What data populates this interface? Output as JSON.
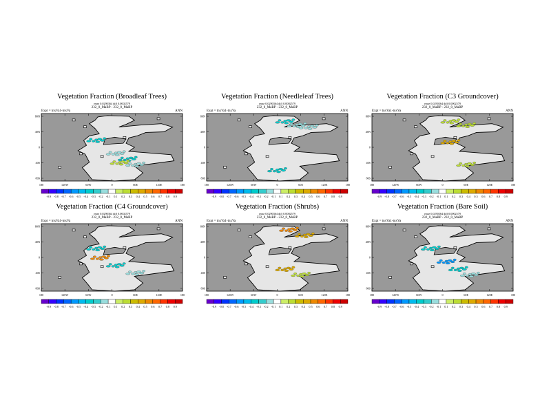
{
  "chart_data": [
    {
      "type": "heatmap",
      "title": "Vegetation Fraction (Broadleaf Trees)",
      "left_label": "Expt = tnxVa1-tnxVa",
      "right_label": "ANN",
      "stats_line1": "rmse 0.0290364 diff 0.0002579",
      "stats_line2": "232_0_MaBP - 232_0_MaBP",
      "lat_ticks": [
        "80N",
        "40N",
        "0",
        "40S",
        "80S"
      ],
      "lon_ticks": [
        "180",
        "120W",
        "60W",
        "0",
        "60E",
        "120E",
        "180"
      ],
      "colorbar_levels": [
        "-0.9",
        "-0.8",
        "-0.7",
        "-0.6",
        "-0.5",
        "-0.4",
        "-0.3",
        "-0.2",
        "-0.1",
        "0.1",
        "0.2",
        "0.3",
        "0.4",
        "0.5",
        "0.6",
        "0.7",
        "0.8",
        "0.9"
      ],
      "anomaly_patches": [
        {
          "lon": -40,
          "lat": 20,
          "value": -0.3
        },
        {
          "lon": 10,
          "lat": -15,
          "value": -0.2
        },
        {
          "lon": 40,
          "lat": -30,
          "value": -0.3
        },
        {
          "lon": 20,
          "lat": -40,
          "value": 0.2
        },
        {
          "lon": 60,
          "lat": -45,
          "value": -0.2
        }
      ]
    },
    {
      "type": "heatmap",
      "title": "Vegetation Fraction (Needleleaf Trees)",
      "left_label": "Expt = tnxVa1-tnxVa",
      "right_label": "ANN",
      "stats_line1": "rmse 0.0290364 diff 0.0002579",
      "stats_line2": "232_0_MaBP - 232_0_MaBP",
      "lat_ticks": [
        "80N",
        "40N",
        "0",
        "40S",
        "80S"
      ],
      "lon_ticks": [
        "180",
        "120W",
        "60W",
        "0",
        "60E",
        "120E",
        "180"
      ],
      "colorbar_levels": [
        "-0.9",
        "-0.8",
        "-0.7",
        "-0.6",
        "-0.5",
        "-0.4",
        "-0.3",
        "-0.2",
        "-0.1",
        "0.1",
        "0.2",
        "0.3",
        "0.4",
        "0.5",
        "0.6",
        "0.7",
        "0.8",
        "0.9"
      ],
      "anomaly_patches": [
        {
          "lon": 20,
          "lat": 70,
          "value": -0.3
        },
        {
          "lon": 50,
          "lat": 60,
          "value": -0.2
        },
        {
          "lon": 80,
          "lat": 55,
          "value": -0.2
        },
        {
          "lon": 0,
          "lat": -60,
          "value": -0.3
        }
      ]
    },
    {
      "type": "heatmap",
      "title": "Vegetation Fraction (C3 Groundcover)",
      "left_label": "Expt = tnxVa1-tnxVa",
      "right_label": "ANN",
      "stats_line1": "rmse 0.0290364 diff 0.0002579",
      "stats_line2": "232_0_MaBP - 232_0_MaBP",
      "lat_ticks": [
        "80N",
        "40N",
        "0",
        "40S",
        "80S"
      ],
      "lon_ticks": [
        "180",
        "120W",
        "60W",
        "0",
        "60E",
        "120E",
        "180"
      ],
      "colorbar_levels": [
        "-0.9",
        "-0.8",
        "-0.7",
        "-0.6",
        "-0.5",
        "-0.4",
        "-0.3",
        "-0.2",
        "-0.1",
        "0.1",
        "0.2",
        "0.3",
        "0.4",
        "0.5",
        "0.6",
        "0.7",
        "0.8",
        "0.9"
      ],
      "anomaly_patches": [
        {
          "lon": 20,
          "lat": 70,
          "value": 0.2
        },
        {
          "lon": 60,
          "lat": 60,
          "value": 0.2
        },
        {
          "lon": 20,
          "lat": 15,
          "value": 0.3
        },
        {
          "lon": 60,
          "lat": -45,
          "value": 0.2
        }
      ]
    },
    {
      "type": "heatmap",
      "title": "Vegetation Fraction (C4 Groundcover)",
      "left_label": "Expt = tnxVa1-tnxVa",
      "right_label": "ANN",
      "stats_line1": "rmse 0.0290364 diff 0.0002579",
      "stats_line2": "232_0_MaBP - 232_0_MaBP",
      "lat_ticks": [
        "80N",
        "40N",
        "0",
        "40S",
        "80S"
      ],
      "lon_ticks": [
        "180",
        "120W",
        "60W",
        "0",
        "60E",
        "120E",
        "180"
      ],
      "colorbar_levels": [
        "-0.9",
        "-0.8",
        "-0.7",
        "-0.6",
        "-0.5",
        "-0.4",
        "-0.3",
        "-0.2",
        "-0.1",
        "0.1",
        "0.2",
        "0.3",
        "0.4",
        "0.5",
        "0.6",
        "0.7",
        "0.8",
        "0.9"
      ],
      "anomaly_patches": [
        {
          "lon": -40,
          "lat": 25,
          "value": -0.3
        },
        {
          "lon": -30,
          "lat": 0,
          "value": 0.5
        },
        {
          "lon": 10,
          "lat": -20,
          "value": -0.3
        },
        {
          "lon": 60,
          "lat": -40,
          "value": -0.2
        }
      ]
    },
    {
      "type": "heatmap",
      "title": "Vegetation Fraction (Shrubs)",
      "left_label": "Expt = tnxVa1-tnxVa",
      "right_label": "ANN",
      "stats_line1": "rmse 0.0290364 diff 0.0002579",
      "stats_line2": "232_0_MaBP - 232_0_MaBP",
      "lat_ticks": [
        "80N",
        "40N",
        "0",
        "40S",
        "80S"
      ],
      "lon_ticks": [
        "180",
        "120W",
        "60W",
        "0",
        "60E",
        "120E",
        "180"
      ],
      "colorbar_levels": [
        "-0.9",
        "-0.8",
        "-0.7",
        "-0.6",
        "-0.5",
        "-0.4",
        "-0.3",
        "-0.2",
        "-0.1",
        "0.1",
        "0.2",
        "0.3",
        "0.4",
        "0.5",
        "0.6",
        "0.7",
        "0.8",
        "0.9"
      ],
      "anomaly_patches": [
        {
          "lon": 30,
          "lat": 75,
          "value": 0.4
        },
        {
          "lon": 70,
          "lat": 60,
          "value": 0.3
        },
        {
          "lon": 20,
          "lat": -30,
          "value": 0.3
        },
        {
          "lon": 60,
          "lat": -45,
          "value": 0.2
        }
      ]
    },
    {
      "type": "heatmap",
      "title": "Vegetation Fraction (Bare Soil)",
      "left_label": "Expt = tnxVa1-tnxVa",
      "right_label": "ANN",
      "stats_line1": "rmse 0.0290364 diff 0.0002579",
      "stats_line2": "232_0_MaBP - 232_0_MaBP",
      "lat_ticks": [
        "80N",
        "40N",
        "0",
        "40S",
        "80S"
      ],
      "lon_ticks": [
        "180",
        "120W",
        "60W",
        "0",
        "60E",
        "120E",
        "180"
      ],
      "colorbar_levels": [
        "-0.9",
        "-0.8",
        "-0.7",
        "-0.6",
        "-0.5",
        "-0.4",
        "-0.3",
        "-0.2",
        "-0.1",
        "0.1",
        "0.2",
        "0.3",
        "0.4",
        "0.5",
        "0.6",
        "0.7",
        "0.8",
        "0.9"
      ],
      "anomaly_patches": [
        {
          "lon": -30,
          "lat": 25,
          "value": -0.3
        },
        {
          "lon": 10,
          "lat": -10,
          "value": -0.5
        },
        {
          "lon": 40,
          "lat": -30,
          "value": -0.3
        },
        {
          "lon": 70,
          "lat": -45,
          "value": -0.2
        }
      ]
    }
  ],
  "colors": {
    "ocean": "#999999",
    "land": "#e6e6e6",
    "scale": [
      "#6600cc",
      "#3300ff",
      "#0033ff",
      "#0066ff",
      "#0099ff",
      "#00bbee",
      "#00cccc",
      "#33cccc",
      "#99dddd",
      "#ffffff",
      "#ccee66",
      "#bbdd33",
      "#ccbb00",
      "#ddaa00",
      "#ee8800",
      "#ff6600",
      "#ff3300",
      "#ee0000",
      "#cc0000"
    ]
  }
}
